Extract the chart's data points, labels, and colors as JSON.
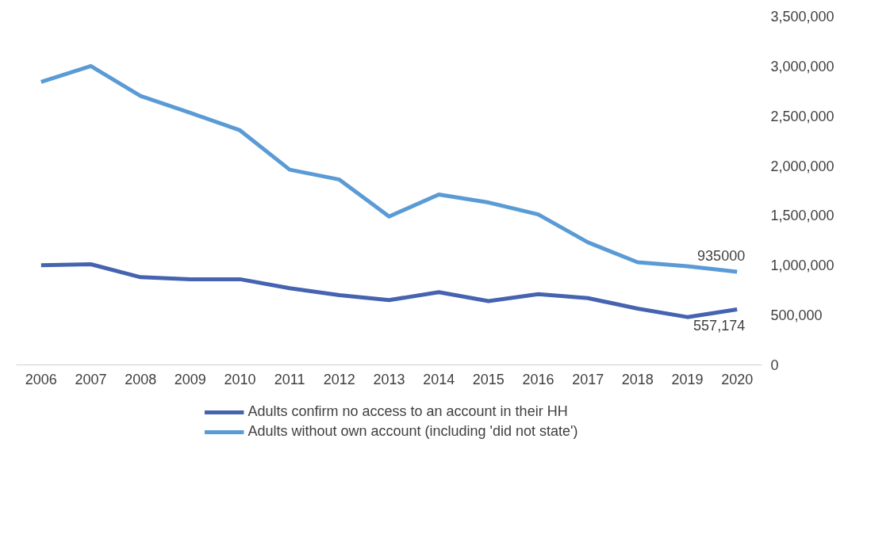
{
  "chart_data": {
    "type": "line",
    "categories": [
      "2006",
      "2007",
      "2008",
      "2009",
      "2010",
      "2011",
      "2012",
      "2013",
      "2014",
      "2015",
      "2016",
      "2017",
      "2018",
      "2019",
      "2020"
    ],
    "series": [
      {
        "name": "Adults confirm no access to an account in their HH",
        "color": "#4563b0",
        "values": [
          1000000,
          1010000,
          880000,
          860000,
          860000,
          770000,
          700000,
          650000,
          730000,
          640000,
          710000,
          670000,
          565000,
          480000,
          557174
        ],
        "value_labels": [
          null,
          null,
          null,
          null,
          null,
          null,
          null,
          null,
          null,
          null,
          null,
          null,
          null,
          null,
          "557,174"
        ]
      },
      {
        "name": "Adults without own account (including 'did not state')",
        "color": "#5b9bd5",
        "values": [
          2840000,
          3000000,
          2700000,
          2530000,
          2355000,
          1960000,
          1860000,
          1490000,
          1710000,
          1630000,
          1510000,
          1230000,
          1030000,
          990000,
          935000
        ],
        "value_labels": [
          null,
          null,
          null,
          null,
          null,
          null,
          null,
          null,
          null,
          null,
          null,
          null,
          null,
          null,
          "935000"
        ]
      }
    ],
    "ylim": [
      0,
      3500000
    ],
    "yticks": [
      0,
      {
        "value": 500000,
        "label": "500,000"
      },
      {
        "value": 1000000,
        "label": "1,000,000"
      },
      {
        "value": 1500000,
        "label": "1,500,000"
      },
      {
        "value": 2000000,
        "label": "2,000,000"
      },
      {
        "value": 2500000,
        "label": "2,500,000"
      },
      {
        "value": 3000000,
        "label": "3,000,000"
      },
      {
        "value": 3500000,
        "label": "3,500,000"
      }
    ],
    "grid": false,
    "legend": "bottom",
    "line_style": "solid",
    "marker": "none"
  }
}
